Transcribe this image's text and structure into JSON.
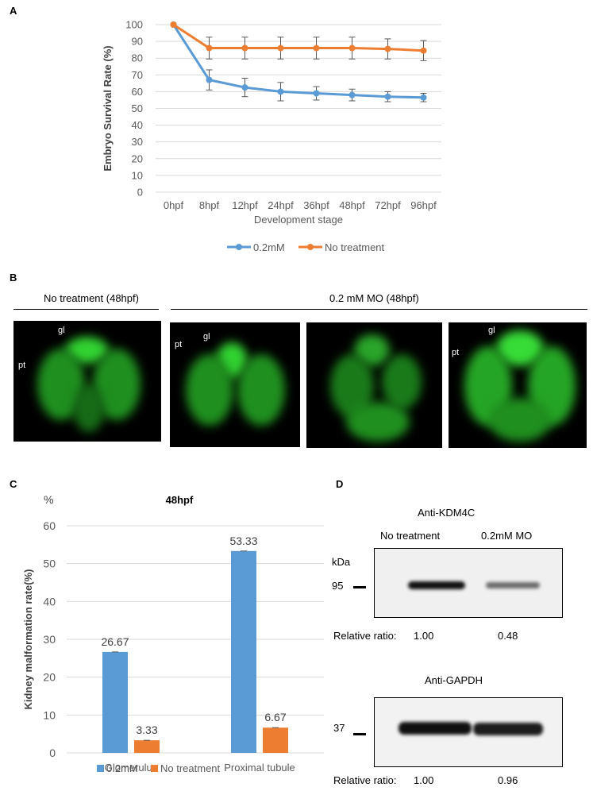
{
  "panels": {
    "a": "A",
    "b": "B",
    "c": "C",
    "d": "D"
  },
  "panel_b": {
    "header_left": "No treatment (48hpf)",
    "header_right": "0.2 mM MO (48hpf)",
    "labels": {
      "gl": "gl",
      "pt": "pt"
    },
    "colors": {
      "fluorescence": "#2ecc2e",
      "background": "#000000"
    }
  },
  "panel_d": {
    "top_title": "Anti-KDM4C",
    "col1": "No treatment",
    "col2": "0.2mM MO",
    "kda": "kDa",
    "marker_top": "95",
    "ratio_label_top": "Relative ratio:",
    "ratio_top_1": "1.00",
    "ratio_top_2": "0.48",
    "bottom_title": "Anti-GAPDH",
    "marker_bottom": "37",
    "ratio_label_bottom": "Relative ratio:",
    "ratio_bottom_1": "1.00",
    "ratio_bottom_2": "0.96"
  },
  "chart_data": [
    {
      "type": "line",
      "xlabel": "Development stage",
      "ylabel": "Embryo Survival Rate (%)",
      "ylim": [
        0,
        100
      ],
      "yticks": [
        0,
        10,
        20,
        30,
        40,
        50,
        60,
        70,
        80,
        90,
        100
      ],
      "grid": true,
      "legend": "bottom",
      "x": [
        "0hpf",
        "8hpf",
        "12hpf",
        "24hpf",
        "36hpf",
        "48hpf",
        "72hpf",
        "96hpf"
      ],
      "series": [
        {
          "name": "0.2mM",
          "color": "#5b9bd5",
          "values": [
            100,
            67,
            62.5,
            60,
            59,
            58,
            57,
            56.5
          ],
          "errors": [
            0,
            6,
            5.5,
            5.5,
            4,
            3.5,
            3,
            2.5
          ]
        },
        {
          "name": "No treatment",
          "color": "#ed7d31",
          "values": [
            100,
            86,
            86,
            86,
            86,
            86,
            85.5,
            84.5
          ],
          "errors": [
            0,
            6.5,
            6.5,
            6.5,
            6.5,
            6.5,
            6,
            6
          ]
        }
      ]
    },
    {
      "type": "bar",
      "title": "48hpf",
      "unit": "%",
      "ylabel": "Kidney malformation rate(%)",
      "ylim": [
        0,
        60
      ],
      "yticks": [
        0,
        10,
        20,
        30,
        40,
        50,
        60
      ],
      "grid": true,
      "legend": "bottom",
      "categories": [
        "Glomerulus",
        "Proximal tubule"
      ],
      "series": [
        {
          "name": "0.2mM",
          "color": "#5b9bd5",
          "values": [
            26.67,
            53.33
          ],
          "labels": [
            "26.67",
            "53.33"
          ]
        },
        {
          "name": "No treatment",
          "color": "#ed7d31",
          "values": [
            3.33,
            6.67
          ],
          "labels": [
            "3.33",
            "6.67"
          ]
        }
      ]
    }
  ]
}
